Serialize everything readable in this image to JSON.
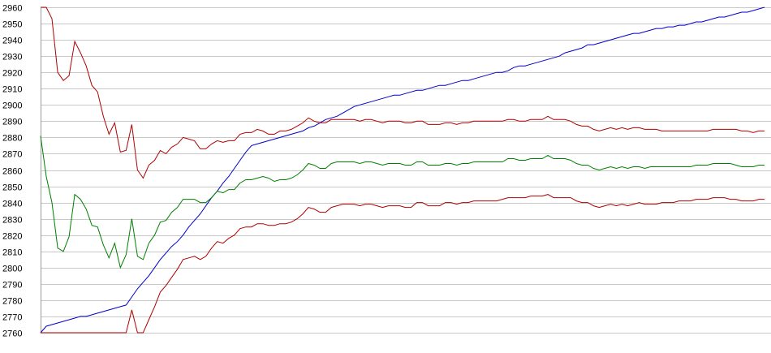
{
  "chart_data": {
    "type": "line",
    "title": "",
    "xlabel": "",
    "ylabel": "",
    "ylim": [
      2760,
      2960
    ],
    "yticks": [
      2760,
      2770,
      2780,
      2790,
      2800,
      2810,
      2820,
      2830,
      2840,
      2850,
      2860,
      2870,
      2880,
      2890,
      2900,
      2910,
      2920,
      2930,
      2940,
      2950,
      2960
    ],
    "grid": true,
    "legend": "none",
    "x": [
      0,
      1,
      2,
      3,
      4,
      5,
      6,
      7,
      8,
      9,
      10,
      11,
      12,
      13,
      14,
      15,
      16,
      17,
      18,
      19,
      20,
      21,
      22,
      23,
      24,
      25,
      26,
      27,
      28,
      29,
      30,
      31,
      32,
      33,
      34,
      35,
      36,
      37,
      38,
      39,
      40,
      41,
      42,
      43,
      44,
      45,
      46,
      47,
      48,
      49,
      50,
      51,
      52,
      53,
      54,
      55,
      56,
      57,
      58,
      59,
      60,
      61,
      62,
      63,
      64,
      65,
      66,
      67,
      68,
      69,
      70,
      71,
      72,
      73,
      74,
      75,
      76,
      77,
      78,
      79,
      80,
      81,
      82,
      83,
      84,
      85,
      86,
      87,
      88,
      89,
      90,
      91,
      92,
      93,
      94,
      95,
      96,
      97,
      98,
      99,
      100,
      101,
      102,
      103,
      104,
      105,
      106,
      107,
      108,
      109,
      110,
      111,
      112,
      113,
      114,
      115,
      116,
      117,
      118,
      119,
      120,
      121,
      122,
      123,
      124,
      125,
      126,
      127
    ],
    "series": [
      {
        "color": "#0000cc",
        "values": [
          2760,
          2764,
          2765,
          2766,
          2767,
          2768,
          2769,
          2770,
          2770,
          2771,
          2772,
          2773,
          2774,
          2775,
          2776,
          2777,
          2782,
          2787,
          2791,
          2795,
          2800,
          2805,
          2809,
          2813,
          2816,
          2820,
          2825,
          2829,
          2833,
          2838,
          2843,
          2847,
          2852,
          2856,
          2861,
          2866,
          2871,
          2875,
          2876,
          2877,
          2878,
          2879,
          2880,
          2881,
          2882,
          2883,
          2884,
          2886,
          2887,
          2889,
          2891,
          2892,
          2893,
          2895,
          2897,
          2899,
          2900,
          2901,
          2902,
          2903,
          2904,
          2905,
          2906,
          2906,
          2907,
          2908,
          2909,
          2909,
          2910,
          2911,
          2912,
          2912,
          2913,
          2914,
          2915,
          2915,
          2916,
          2917,
          2918,
          2919,
          2920,
          2920,
          2921,
          2923,
          2924,
          2924,
          2925,
          2926,
          2927,
          2928,
          2929,
          2930,
          2932,
          2933,
          2934,
          2935,
          2937,
          2937,
          2938,
          2939,
          2940,
          2941,
          2942,
          2943,
          2944,
          2944,
          2945,
          2946,
          2947,
          2947,
          2948,
          2948,
          2949,
          2949,
          2950,
          2951,
          2951,
          2952,
          2953,
          2954,
          2954,
          2955,
          2956,
          2957,
          2957,
          2958,
          2959,
          2960
        ]
      },
      {
        "color": "#b00000",
        "values": [
          2960,
          2960,
          2953,
          2920,
          2915,
          2918,
          2939,
          2932,
          2924,
          2912,
          2908,
          2893,
          2882,
          2889,
          2871,
          2872,
          2888,
          2860,
          2855,
          2863,
          2866,
          2872,
          2870,
          2874,
          2876,
          2880,
          2879,
          2878,
          2873,
          2873,
          2876,
          2878,
          2877,
          2878,
          2878,
          2882,
          2883,
          2883,
          2885,
          2884,
          2882,
          2882,
          2884,
          2884,
          2885,
          2887,
          2889,
          2892,
          2890,
          2889,
          2889,
          2891,
          2891,
          2891,
          2891,
          2891,
          2890,
          2891,
          2891,
          2890,
          2889,
          2890,
          2890,
          2890,
          2889,
          2889,
          2890,
          2890,
          2888,
          2888,
          2888,
          2889,
          2889,
          2888,
          2889,
          2889,
          2890,
          2890,
          2890,
          2890,
          2890,
          2890,
          2891,
          2891,
          2890,
          2890,
          2891,
          2891,
          2891,
          2893,
          2891,
          2891,
          2891,
          2890,
          2888,
          2887,
          2887,
          2885,
          2884,
          2885,
          2886,
          2885,
          2886,
          2885,
          2886,
          2886,
          2885,
          2885,
          2885,
          2884,
          2884,
          2884,
          2884,
          2884,
          2884,
          2884,
          2884,
          2884,
          2885,
          2885,
          2885,
          2885,
          2885,
          2884,
          2884,
          2883,
          2884,
          2884
        ]
      },
      {
        "color": "#008000",
        "values": [
          2881,
          2856,
          2840,
          2812,
          2810,
          2819,
          2845,
          2842,
          2836,
          2826,
          2825,
          2814,
          2806,
          2815,
          2800,
          2808,
          2830,
          2807,
          2805,
          2815,
          2820,
          2828,
          2829,
          2834,
          2837,
          2842,
          2842,
          2842,
          2840,
          2840,
          2843,
          2847,
          2846,
          2848,
          2848,
          2852,
          2854,
          2854,
          2855,
          2856,
          2855,
          2853,
          2854,
          2854,
          2855,
          2857,
          2860,
          2864,
          2863,
          2861,
          2861,
          2864,
          2865,
          2865,
          2865,
          2865,
          2864,
          2865,
          2865,
          2864,
          2863,
          2864,
          2864,
          2864,
          2863,
          2863,
          2865,
          2865,
          2863,
          2863,
          2863,
          2864,
          2864,
          2863,
          2864,
          2864,
          2865,
          2865,
          2865,
          2865,
          2865,
          2865,
          2867,
          2867,
          2866,
          2866,
          2867,
          2867,
          2867,
          2869,
          2867,
          2867,
          2867,
          2866,
          2864,
          2863,
          2863,
          2861,
          2860,
          2861,
          2862,
          2861,
          2862,
          2861,
          2862,
          2862,
          2861,
          2862,
          2862,
          2862,
          2862,
          2862,
          2862,
          2862,
          2862,
          2863,
          2863,
          2863,
          2864,
          2864,
          2864,
          2864,
          2863,
          2862,
          2862,
          2862,
          2863,
          2863
        ]
      },
      {
        "color": "#b00000",
        "values": [
          2760,
          2760,
          2760,
          2760,
          2760,
          2760,
          2760,
          2760,
          2760,
          2760,
          2760,
          2760,
          2760,
          2760,
          2760,
          2760,
          2774,
          2760,
          2760,
          2768,
          2776,
          2785,
          2789,
          2794,
          2799,
          2805,
          2806,
          2807,
          2805,
          2807,
          2812,
          2816,
          2815,
          2818,
          2820,
          2824,
          2825,
          2825,
          2827,
          2827,
          2826,
          2826,
          2827,
          2827,
          2828,
          2830,
          2833,
          2837,
          2836,
          2834,
          2834,
          2837,
          2838,
          2839,
          2839,
          2839,
          2838,
          2839,
          2839,
          2838,
          2837,
          2838,
          2838,
          2838,
          2837,
          2837,
          2840,
          2840,
          2838,
          2838,
          2838,
          2840,
          2840,
          2839,
          2840,
          2840,
          2841,
          2841,
          2841,
          2841,
          2841,
          2842,
          2843,
          2843,
          2843,
          2843,
          2844,
          2844,
          2844,
          2845,
          2843,
          2843,
          2843,
          2843,
          2841,
          2840,
          2840,
          2838,
          2837,
          2838,
          2839,
          2838,
          2839,
          2838,
          2839,
          2840,
          2839,
          2839,
          2839,
          2840,
          2840,
          2840,
          2841,
          2841,
          2841,
          2842,
          2842,
          2842,
          2843,
          2843,
          2843,
          2842,
          2842,
          2841,
          2841,
          2841,
          2842,
          2842
        ]
      }
    ]
  }
}
